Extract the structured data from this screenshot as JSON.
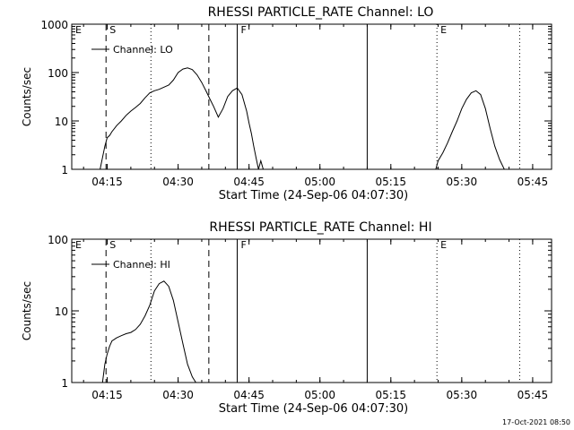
{
  "footer": {
    "timestamp": "17-Oct-2021 08:50"
  },
  "chart_data": [
    {
      "type": "line",
      "title": "RHESSI PARTICLE_RATE Channel: LO",
      "xlabel": "Start Time (24-Sep-06 04:07:30)",
      "ylabel": "Counts/sec",
      "y_scale": "log",
      "ylim": [
        1,
        1000
      ],
      "xlim": [
        "04:07:30",
        "05:49:00"
      ],
      "x_ticks": [
        "04:15",
        "04:30",
        "04:45",
        "05:00",
        "05:15",
        "05:30",
        "05:45"
      ],
      "y_ticks": [
        "1",
        "10",
        "100",
        "1000"
      ],
      "legend": {
        "position": "top-left",
        "entries": [
          "Channel: LO"
        ]
      },
      "markers": [
        {
          "label": "E",
          "time": "04:07:30",
          "style": "none"
        },
        {
          "label": "S",
          "time": "04:14:45",
          "style": "dashed"
        },
        {
          "label": "",
          "time": "04:24:15",
          "style": "dotted"
        },
        {
          "label": "",
          "time": "04:36:30",
          "style": "dashed"
        },
        {
          "label": "F",
          "time": "04:42:30",
          "style": "solid"
        },
        {
          "label": "",
          "time": "05:10:00",
          "style": "solid"
        },
        {
          "label": "E",
          "time": "05:24:45",
          "style": "dotted"
        },
        {
          "label": "",
          "time": "05:42:15",
          "style": "dotted"
        }
      ],
      "series": [
        {
          "name": "Channel: LO",
          "segments": [
            {
              "x": [
                "04:13:30",
                "04:14:30",
                "04:15:00",
                "04:15:30",
                "04:16:00",
                "04:17:00",
                "04:18:00",
                "04:19:00",
                "04:20:00",
                "04:21:00",
                "04:22:00",
                "04:23:00",
                "04:24:00",
                "04:25:00",
                "04:26:00",
                "04:27:00",
                "04:28:00",
                "04:29:00",
                "04:30:00",
                "04:31:00",
                "04:32:00",
                "04:33:00",
                "04:34:00",
                "04:35:00",
                "04:36:00",
                "04:36:45",
                "04:37:30",
                "04:38:30",
                "04:39:30",
                "04:40:30",
                "04:41:30",
                "04:42:30",
                "04:43:30",
                "04:44:30",
                "04:45:00",
                "04:45:30",
                "04:46:00",
                "04:46:30",
                "04:47:00",
                "04:47:30",
                "04:48:00"
              ],
              "y": [
                1,
                3,
                4.5,
                5,
                6,
                8,
                10,
                13,
                16,
                19,
                23,
                30,
                38,
                42,
                45,
                50,
                55,
                70,
                100,
                118,
                125,
                115,
                90,
                62,
                40,
                28,
                20,
                12,
                18,
                32,
                42,
                48,
                35,
                16,
                9,
                5.5,
                3,
                1.7,
                1,
                1.5,
                1
              ]
            },
            {
              "x": [
                "05:24:30",
                "05:25:00",
                "05:26:00",
                "05:27:00",
                "05:28:00",
                "05:29:00",
                "05:30:00",
                "05:31:00",
                "05:32:00",
                "05:33:00",
                "05:34:00",
                "05:35:00",
                "05:36:00",
                "05:37:00",
                "05:38:00",
                "05:39:00"
              ],
              "y": [
                1,
                1.5,
                2.2,
                3.5,
                6,
                10,
                18,
                28,
                38,
                42,
                35,
                18,
                7,
                3,
                1.6,
                1
              ]
            }
          ]
        }
      ]
    },
    {
      "type": "line",
      "title": "RHESSI PARTICLE_RATE Channel: HI",
      "xlabel": "Start Time (24-Sep-06 04:07:30)",
      "ylabel": "Counts/sec",
      "y_scale": "log",
      "ylim": [
        1,
        100
      ],
      "xlim": [
        "04:07:30",
        "05:49:00"
      ],
      "x_ticks": [
        "04:15",
        "04:30",
        "04:45",
        "05:00",
        "05:15",
        "05:30",
        "05:45"
      ],
      "y_ticks": [
        "1",
        "10",
        "100"
      ],
      "legend": {
        "position": "top-left",
        "entries": [
          "Channel: HI"
        ]
      },
      "markers": [
        {
          "label": "E",
          "time": "04:07:30",
          "style": "none"
        },
        {
          "label": "S",
          "time": "04:14:45",
          "style": "dashed"
        },
        {
          "label": "",
          "time": "04:24:15",
          "style": "dotted"
        },
        {
          "label": "",
          "time": "04:36:30",
          "style": "dashed"
        },
        {
          "label": "F",
          "time": "04:42:30",
          "style": "solid"
        },
        {
          "label": "",
          "time": "05:10:00",
          "style": "solid"
        },
        {
          "label": "E",
          "time": "05:24:45",
          "style": "dotted"
        },
        {
          "label": "",
          "time": "05:42:15",
          "style": "dotted"
        }
      ],
      "series": [
        {
          "name": "Channel: HI",
          "segments": [
            {
              "x": [
                "04:14:00",
                "04:14:30",
                "04:15:00",
                "04:15:30",
                "04:16:00",
                "04:17:00",
                "04:18:00",
                "04:19:00",
                "04:20:00",
                "04:21:00",
                "04:22:00",
                "04:23:00",
                "04:24:00",
                "04:25:00",
                "04:26:00",
                "04:27:00",
                "04:28:00",
                "04:29:00",
                "04:30:00",
                "04:31:00",
                "04:32:00",
                "04:33:00",
                "04:33:45"
              ],
              "y": [
                1,
                1.8,
                2.5,
                3.2,
                3.8,
                4.2,
                4.5,
                4.8,
                5,
                5.5,
                6.5,
                8.5,
                12,
                19,
                24,
                26,
                22,
                14,
                7,
                3.5,
                1.8,
                1.2,
                1
              ]
            }
          ]
        }
      ]
    }
  ]
}
